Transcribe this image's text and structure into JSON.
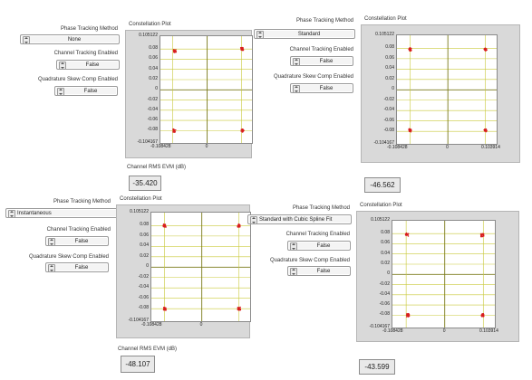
{
  "labels": {
    "phase_tracking_method": "Phase Tracking Method",
    "channel_tracking_enabled": "Channel Tracking Enabled",
    "quadrature_skew_comp_enabled": "Quadrature Skew Comp Enabled",
    "constellation_plot": "Constellation Plot",
    "channel_rms_evm": "Channel RMS EVM (dB)"
  },
  "panels": [
    {
      "phase_tracking_method": "None",
      "channel_tracking_enabled": "False",
      "quadrature_skew_comp_enabled": "False",
      "evm_value": "-35.420",
      "y_ticks": [
        "0.105122",
        "0.08",
        "0.06",
        "0.04",
        "0.02",
        "0",
        "-0.02",
        "-0.04",
        "-0.06",
        "-0.08",
        "-0.104167"
      ],
      "x_ticks": [
        "-0.108428",
        "0"
      ],
      "chart_data": {
        "type": "scatter",
        "x_range": [
          -0.108428,
          0.103914
        ],
        "y_range": [
          -0.104167,
          0.105122
        ],
        "clusters": [
          [
            -0.075,
            0.076
          ],
          [
            0.081,
            0.08
          ],
          [
            -0.076,
            -0.08
          ],
          [
            0.082,
            -0.08
          ]
        ]
      }
    },
    {
      "phase_tracking_method": "Standard",
      "channel_tracking_enabled": "False",
      "quadrature_skew_comp_enabled": "False",
      "evm_value": "-46.562",
      "y_ticks": [
        "0.105122",
        "0.08",
        "0.06",
        "0.04",
        "0.02",
        "0",
        "-0.02",
        "-0.04",
        "-0.06",
        "-0.08",
        "-0.104167"
      ],
      "x_ticks": [
        "-0.108428",
        "0",
        "0.103914"
      ],
      "chart_data": {
        "type": "scatter",
        "x_range": [
          -0.108428,
          0.103914
        ],
        "y_range": [
          -0.104167,
          0.105122
        ],
        "clusters": [
          [
            -0.08,
            0.078
          ],
          [
            0.08,
            0.078
          ],
          [
            -0.08,
            -0.078
          ],
          [
            0.08,
            -0.078
          ]
        ]
      }
    },
    {
      "phase_tracking_method": "Instantaneous",
      "channel_tracking_enabled": "False",
      "quadrature_skew_comp_enabled": "False",
      "evm_value": "-48.107",
      "y_ticks": [
        "0.105122",
        "0.08",
        "0.06",
        "0.04",
        "0.02",
        "0",
        "-0.02",
        "-0.04",
        "-0.06",
        "-0.08",
        "-0.104167"
      ],
      "x_ticks": [
        "-0.108428",
        "0"
      ],
      "chart_data": {
        "type": "scatter",
        "x_range": [
          -0.108428,
          0.103914
        ],
        "y_range": [
          -0.104167,
          0.105122
        ],
        "clusters": [
          [
            -0.08,
            0.08
          ],
          [
            0.08,
            0.08
          ],
          [
            -0.08,
            -0.08
          ],
          [
            0.08,
            -0.08
          ]
        ]
      }
    },
    {
      "phase_tracking_method": "Standard with Cubic Spline Fit",
      "channel_tracking_enabled": "False",
      "quadrature_skew_comp_enabled": "False",
      "evm_value": "-43.599",
      "y_ticks": [
        "0.105122",
        "0.08",
        "0.06",
        "0.04",
        "0.02",
        "0",
        "-0.02",
        "-0.04",
        "-0.06",
        "-0.08",
        "-0.104167"
      ],
      "x_ticks": [
        "-0.108428",
        "0",
        "0.103914"
      ],
      "chart_data": {
        "type": "scatter",
        "x_range": [
          -0.108428,
          0.103914
        ],
        "y_range": [
          -0.104167,
          0.105122
        ],
        "clusters": [
          [
            -0.078,
            0.078
          ],
          [
            0.078,
            0.077
          ],
          [
            -0.076,
            -0.08
          ],
          [
            0.079,
            -0.08
          ]
        ]
      }
    }
  ],
  "colors": {
    "point": "#d81e1e",
    "grid": "#c9c93a",
    "axis": "#7a7a1a"
  }
}
